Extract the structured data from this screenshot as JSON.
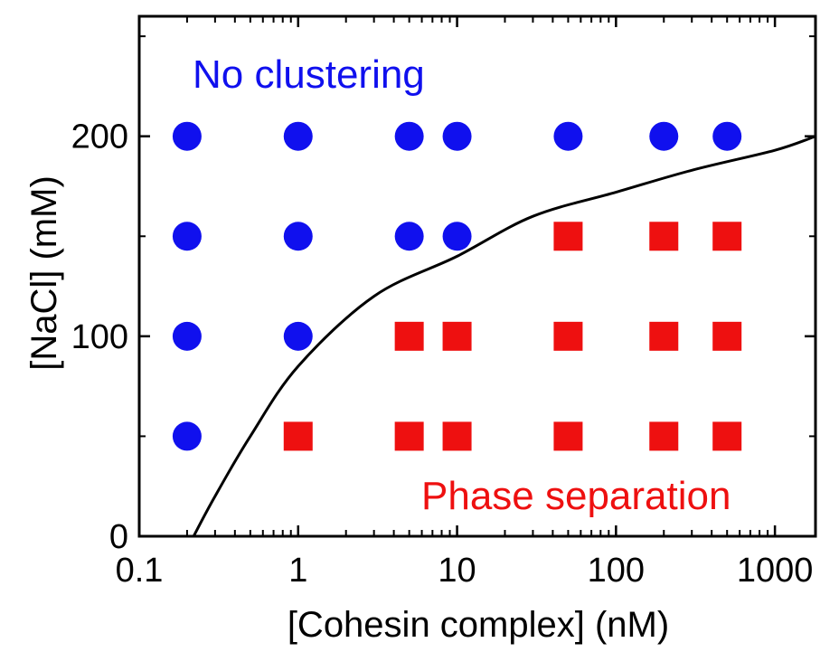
{
  "chart_data": {
    "type": "scatter",
    "x_scale": "log",
    "xlabel": "[Cohesin complex] (nM)",
    "ylabel": "[NaCl] (mM)",
    "xlim": [
      0.1,
      1800
    ],
    "ylim": [
      0,
      260
    ],
    "x_ticks": [
      {
        "value": 0.1,
        "label": "0.1"
      },
      {
        "value": 1,
        "label": "1"
      },
      {
        "value": 10,
        "label": "10"
      },
      {
        "value": 100,
        "label": "100"
      },
      {
        "value": 1000,
        "label": "1000"
      }
    ],
    "y_ticks": [
      {
        "value": 0,
        "label": "0"
      },
      {
        "value": 100,
        "label": "100"
      },
      {
        "value": 200,
        "label": "200"
      }
    ],
    "y_minor_ticks": [
      50,
      150,
      250
    ],
    "annotations": [
      {
        "text": "No clustering",
        "color": "#1010ee",
        "position": "top-left"
      },
      {
        "text": "Phase separation",
        "color": "#ee1010",
        "position": "bottom-right"
      }
    ],
    "series": [
      {
        "marker": "circle",
        "color": "#1010ee",
        "points": [
          {
            "x": 0.2,
            "y": 200
          },
          {
            "x": 1,
            "y": 200
          },
          {
            "x": 5,
            "y": 200
          },
          {
            "x": 10,
            "y": 200
          },
          {
            "x": 50,
            "y": 200
          },
          {
            "x": 200,
            "y": 200
          },
          {
            "x": 500,
            "y": 200
          },
          {
            "x": 0.2,
            "y": 150
          },
          {
            "x": 1,
            "y": 150
          },
          {
            "x": 5,
            "y": 150
          },
          {
            "x": 10,
            "y": 150
          },
          {
            "x": 0.2,
            "y": 100
          },
          {
            "x": 1,
            "y": 100
          },
          {
            "x": 0.2,
            "y": 50
          }
        ]
      },
      {
        "marker": "square",
        "color": "#ee1010",
        "points": [
          {
            "x": 50,
            "y": 150
          },
          {
            "x": 200,
            "y": 150
          },
          {
            "x": 500,
            "y": 150
          },
          {
            "x": 5,
            "y": 100
          },
          {
            "x": 10,
            "y": 100
          },
          {
            "x": 50,
            "y": 100
          },
          {
            "x": 200,
            "y": 100
          },
          {
            "x": 500,
            "y": 100
          },
          {
            "x": 1,
            "y": 50
          },
          {
            "x": 5,
            "y": 50
          },
          {
            "x": 10,
            "y": 50
          },
          {
            "x": 50,
            "y": 50
          },
          {
            "x": 200,
            "y": 50
          },
          {
            "x": 500,
            "y": 50
          }
        ]
      }
    ],
    "boundary_curve": {
      "color": "#000000",
      "points": [
        {
          "x": 0.22,
          "y": 0
        },
        {
          "x": 0.3,
          "y": 20
        },
        {
          "x": 0.5,
          "y": 50
        },
        {
          "x": 1,
          "y": 85
        },
        {
          "x": 3,
          "y": 120
        },
        {
          "x": 10,
          "y": 140
        },
        {
          "x": 30,
          "y": 160
        },
        {
          "x": 100,
          "y": 172
        },
        {
          "x": 300,
          "y": 183
        },
        {
          "x": 1000,
          "y": 193
        },
        {
          "x": 1800,
          "y": 200
        }
      ]
    }
  }
}
